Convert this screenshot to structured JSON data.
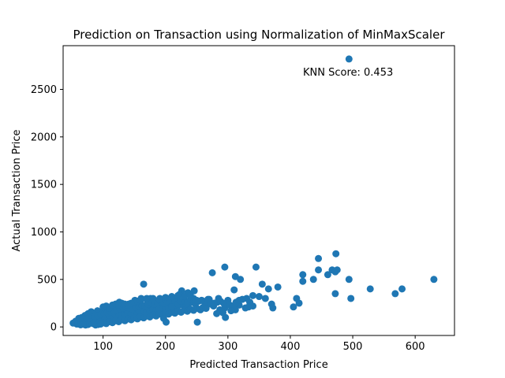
{
  "chart_data": {
    "type": "scatter",
    "title": "Prediction on Transaction using Normalization of MinMaxScaler",
    "xlabel": "Predicted Transaction Price",
    "ylabel": "Actual Transaction Price",
    "xlim": [
      36,
      663
    ],
    "ylim": [
      -90,
      2960
    ],
    "xticks": [
      100,
      200,
      300,
      400,
      500,
      600
    ],
    "yticks": [
      0,
      500,
      1000,
      1500,
      2000,
      2500
    ],
    "grid": false,
    "color": "#1f77b4",
    "annotation": "KNN Score: 0.453",
    "points": [
      [
        494,
        2820
      ],
      [
        165,
        450
      ],
      [
        275,
        570
      ],
      [
        295,
        630
      ],
      [
        345,
        630
      ],
      [
        312,
        530
      ],
      [
        320,
        500
      ],
      [
        380,
        420
      ],
      [
        355,
        450
      ],
      [
        365,
        400
      ],
      [
        310,
        390
      ],
      [
        340,
        330
      ],
      [
        330,
        300
      ],
      [
        300,
        280
      ],
      [
        285,
        300
      ],
      [
        270,
        290
      ],
      [
        350,
        320
      ],
      [
        360,
        300
      ],
      [
        370,
        240
      ],
      [
        372,
        200
      ],
      [
        340,
        220
      ],
      [
        335,
        260
      ],
      [
        318,
        230
      ],
      [
        312,
        180
      ],
      [
        295,
        200
      ],
      [
        296,
        100
      ],
      [
        292,
        150
      ],
      [
        287,
        180
      ],
      [
        282,
        140
      ],
      [
        277,
        220
      ],
      [
        266,
        260
      ],
      [
        262,
        200
      ],
      [
        256,
        180
      ],
      [
        251,
        50
      ],
      [
        246,
        380
      ],
      [
        236,
        360
      ],
      [
        226,
        380
      ],
      [
        222,
        340
      ],
      [
        216,
        300
      ],
      [
        212,
        240
      ],
      [
        206,
        260
      ],
      [
        201,
        50
      ],
      [
        197,
        90
      ],
      [
        191,
        300
      ],
      [
        186,
        250
      ],
      [
        181,
        280
      ],
      [
        176,
        300
      ],
      [
        171,
        270
      ],
      [
        161,
        300
      ],
      [
        156,
        250
      ],
      [
        151,
        280
      ],
      [
        146,
        220
      ],
      [
        141,
        240
      ],
      [
        136,
        180
      ],
      [
        131,
        200
      ],
      [
        126,
        260
      ],
      [
        121,
        220
      ],
      [
        116,
        180
      ],
      [
        111,
        160
      ],
      [
        106,
        200
      ],
      [
        101,
        180
      ],
      [
        96,
        150
      ],
      [
        91,
        170
      ],
      [
        86,
        130
      ],
      [
        81,
        160
      ],
      [
        76,
        140
      ],
      [
        71,
        120
      ],
      [
        66,
        100
      ],
      [
        61,
        90
      ],
      [
        56,
        60
      ],
      [
        52,
        40
      ],
      [
        58,
        30
      ],
      [
        63,
        50
      ],
      [
        68,
        40
      ],
      [
        73,
        30
      ],
      [
        78,
        50
      ],
      [
        83,
        40
      ],
      [
        88,
        30
      ],
      [
        93,
        60
      ],
      [
        98,
        50
      ],
      [
        103,
        70
      ],
      [
        108,
        60
      ],
      [
        113,
        80
      ],
      [
        118,
        70
      ],
      [
        123,
        90
      ],
      [
        128,
        100
      ],
      [
        133,
        110
      ],
      [
        138,
        120
      ],
      [
        143,
        100
      ],
      [
        148,
        130
      ],
      [
        153,
        140
      ],
      [
        158,
        120
      ],
      [
        163,
        150
      ],
      [
        168,
        160
      ],
      [
        173,
        140
      ],
      [
        178,
        170
      ],
      [
        183,
        180
      ],
      [
        188,
        160
      ],
      [
        193,
        190
      ],
      [
        198,
        200
      ],
      [
        203,
        180
      ],
      [
        208,
        210
      ],
      [
        213,
        220
      ],
      [
        218,
        200
      ],
      [
        223,
        230
      ],
      [
        228,
        240
      ],
      [
        233,
        220
      ],
      [
        238,
        250
      ],
      [
        243,
        260
      ],
      [
        248,
        240
      ],
      [
        253,
        270
      ],
      [
        258,
        280
      ],
      [
        263,
        260
      ],
      [
        268,
        290
      ],
      [
        273,
        240
      ],
      [
        278,
        250
      ],
      [
        283,
        260
      ],
      [
        288,
        270
      ],
      [
        293,
        250
      ],
      [
        298,
        240
      ],
      [
        303,
        230
      ],
      [
        308,
        220
      ],
      [
        313,
        260
      ],
      [
        318,
        280
      ],
      [
        323,
        290
      ],
      [
        328,
        200
      ],
      [
        333,
        210
      ],
      [
        305,
        170
      ],
      [
        80,
        80
      ],
      [
        85,
        90
      ],
      [
        90,
        100
      ],
      [
        95,
        110
      ],
      [
        100,
        120
      ],
      [
        105,
        130
      ],
      [
        110,
        140
      ],
      [
        115,
        150
      ],
      [
        120,
        130
      ],
      [
        125,
        140
      ],
      [
        130,
        160
      ],
      [
        135,
        150
      ],
      [
        140,
        170
      ],
      [
        145,
        160
      ],
      [
        150,
        180
      ],
      [
        155,
        170
      ],
      [
        160,
        190
      ],
      [
        165,
        200
      ],
      [
        170,
        210
      ],
      [
        175,
        190
      ],
      [
        180,
        220
      ],
      [
        185,
        230
      ],
      [
        190,
        210
      ],
      [
        195,
        240
      ],
      [
        200,
        230
      ],
      [
        205,
        220
      ],
      [
        210,
        250
      ],
      [
        215,
        260
      ],
      [
        220,
        240
      ],
      [
        225,
        270
      ],
      [
        230,
        280
      ],
      [
        235,
        260
      ],
      [
        240,
        290
      ],
      [
        245,
        300
      ],
      [
        250,
        280
      ],
      [
        70,
        70
      ],
      [
        75,
        90
      ],
      [
        80,
        110
      ],
      [
        85,
        60
      ],
      [
        90,
        80
      ],
      [
        95,
        90
      ],
      [
        100,
        100
      ],
      [
        105,
        90
      ],
      [
        110,
        110
      ],
      [
        115,
        100
      ],
      [
        120,
        120
      ],
      [
        125,
        110
      ],
      [
        130,
        130
      ],
      [
        135,
        120
      ],
      [
        140,
        140
      ],
      [
        145,
        130
      ],
      [
        150,
        150
      ],
      [
        155,
        140
      ],
      [
        160,
        160
      ],
      [
        165,
        150
      ],
      [
        170,
        170
      ],
      [
        175,
        160
      ],
      [
        180,
        180
      ],
      [
        185,
        170
      ],
      [
        190,
        190
      ],
      [
        195,
        180
      ],
      [
        200,
        200
      ],
      [
        205,
        190
      ],
      [
        210,
        210
      ],
      [
        62,
        60
      ],
      [
        67,
        70
      ],
      [
        72,
        80
      ],
      [
        77,
        90
      ],
      [
        82,
        100
      ],
      [
        87,
        110
      ],
      [
        92,
        120
      ],
      [
        97,
        130
      ],
      [
        102,
        140
      ],
      [
        107,
        150
      ],
      [
        112,
        160
      ],
      [
        117,
        170
      ],
      [
        122,
        180
      ],
      [
        127,
        190
      ],
      [
        132,
        200
      ],
      [
        137,
        210
      ],
      [
        142,
        200
      ],
      [
        147,
        190
      ],
      [
        152,
        210
      ],
      [
        157,
        220
      ],
      [
        162,
        230
      ],
      [
        167,
        220
      ],
      [
        172,
        240
      ],
      [
        177,
        250
      ],
      [
        182,
        240
      ],
      [
        187,
        260
      ],
      [
        192,
        270
      ],
      [
        197,
        250
      ],
      [
        202,
        270
      ],
      [
        55,
        45
      ],
      [
        60,
        35
      ],
      [
        65,
        55
      ],
      [
        70,
        45
      ],
      [
        75,
        35
      ],
      [
        80,
        55
      ],
      [
        85,
        45
      ],
      [
        90,
        35
      ],
      [
        95,
        55
      ],
      [
        100,
        45
      ],
      [
        105,
        35
      ],
      [
        110,
        55
      ],
      [
        115,
        45
      ],
      [
        120,
        65
      ],
      [
        125,
        55
      ],
      [
        130,
        75
      ],
      [
        135,
        65
      ],
      [
        140,
        85
      ],
      [
        145,
        75
      ],
      [
        150,
        95
      ],
      [
        155,
        85
      ],
      [
        160,
        105
      ],
      [
        165,
        95
      ],
      [
        170,
        115
      ],
      [
        175,
        105
      ],
      [
        180,
        125
      ],
      [
        185,
        115
      ],
      [
        190,
        135
      ],
      [
        195,
        125
      ],
      [
        200,
        145
      ],
      [
        205,
        135
      ],
      [
        210,
        155
      ],
      [
        215,
        145
      ],
      [
        220,
        165
      ],
      [
        225,
        155
      ],
      [
        230,
        175
      ],
      [
        235,
        165
      ],
      [
        240,
        185
      ],
      [
        245,
        175
      ],
      [
        250,
        195
      ],
      [
        255,
        185
      ],
      [
        260,
        205
      ],
      [
        265,
        195
      ],
      [
        88,
        20
      ],
      [
        92,
        25
      ],
      [
        96,
        30
      ],
      [
        84,
        35
      ],
      [
        76,
        25
      ],
      [
        72,
        20
      ],
      [
        68,
        28
      ],
      [
        64,
        22
      ],
      [
        100,
        210
      ],
      [
        105,
        220
      ],
      [
        110,
        200
      ],
      [
        115,
        230
      ],
      [
        120,
        240
      ],
      [
        125,
        230
      ],
      [
        130,
        250
      ],
      [
        135,
        240
      ],
      [
        140,
        230
      ],
      [
        145,
        250
      ],
      [
        150,
        260
      ],
      [
        155,
        270
      ],
      [
        160,
        280
      ],
      [
        170,
        300
      ],
      [
        180,
        300
      ],
      [
        190,
        290
      ],
      [
        200,
        310
      ],
      [
        210,
        320
      ],
      [
        220,
        330
      ],
      [
        230,
        320
      ],
      [
        240,
        330
      ],
      [
        420,
        550
      ],
      [
        420,
        480
      ],
      [
        437,
        500
      ],
      [
        445,
        600
      ],
      [
        445,
        720
      ],
      [
        460,
        550
      ],
      [
        467,
        600
      ],
      [
        472,
        580
      ],
      [
        475,
        600
      ],
      [
        473,
        770
      ],
      [
        472,
        350
      ],
      [
        494,
        500
      ],
      [
        497,
        300
      ],
      [
        528,
        400
      ],
      [
        568,
        350
      ],
      [
        579,
        400
      ],
      [
        630,
        500
      ],
      [
        405,
        210
      ],
      [
        410,
        300
      ],
      [
        414,
        250
      ]
    ]
  }
}
